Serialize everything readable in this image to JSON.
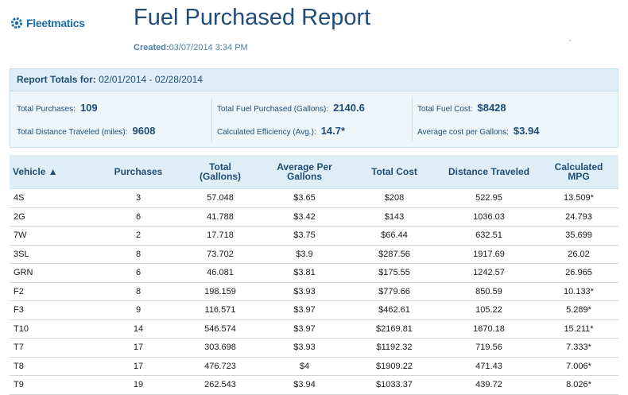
{
  "header": {
    "logo_text": "Fleetmatics",
    "title": "Fuel Purchased Report",
    "created_label": "Created:",
    "created_value": "03/07/2014 3:34 PM"
  },
  "totals": {
    "label": "Report Totals for:",
    "range_start": "02/01/2014",
    "range_sep": " - ",
    "range_end": "02/28/2014",
    "total_purchases_label": "Total Purchases:",
    "total_purchases": "109",
    "total_distance_label": "Total Distance Traveled (miles):",
    "total_distance": "9608",
    "total_fuel_label": "Total Fuel Purchased (Gallons):",
    "total_fuel": "2140.6",
    "efficiency_label": "Calculated Efficiency (Avg.):",
    "efficiency": "14.7*",
    "fuel_cost_label": "Total Fuel Cost:",
    "fuel_cost": "$8428",
    "avg_cost_label": "Average cost per Gallons:",
    "avg_cost": "$3.94"
  },
  "table": {
    "headers": [
      [
        "Vehicle ▲"
      ],
      [
        "Purchases"
      ],
      [
        "Total",
        "(Gallons)"
      ],
      [
        "Average Per",
        "Gallons"
      ],
      [
        "Total Cost"
      ],
      [
        "Distance Traveled"
      ],
      [
        "Calculated",
        "MPG"
      ]
    ],
    "rows": [
      [
        "4S",
        "3",
        "57.048",
        "$3.65",
        "$208",
        "522.95",
        "13.509*"
      ],
      [
        "2G",
        "6",
        "41.788",
        "$3.42",
        "$143",
        "1036.03",
        "24.793"
      ],
      [
        "7W",
        "2",
        "17.718",
        "$3.75",
        "$66.44",
        "632.51",
        "35.699"
      ],
      [
        "3SL",
        "8",
        "73.702",
        "$3.9",
        "$287.56",
        "1917.69",
        "26.02"
      ],
      [
        "GRN",
        "6",
        "46.081",
        "$3.81",
        "$175.55",
        "1242.57",
        "26.965"
      ],
      [
        "F2",
        "8",
        "198.159",
        "$3.93",
        "$779.66",
        "850.59",
        "10.133*"
      ],
      [
        "F3",
        "9",
        "116.571",
        "$3.97",
        "$462.61",
        "105.22",
        "5.289*"
      ],
      [
        "T10",
        "14",
        "546.574",
        "$3.97",
        "$2169.81",
        "1670.18",
        "15.211*"
      ],
      [
        "T7",
        "17",
        "303.698",
        "$3.93",
        "$1192.32",
        "719.56",
        "7.333*"
      ],
      [
        "T8",
        "17",
        "476.723",
        "$4",
        "$1909.22",
        "471.43",
        "7.006*"
      ],
      [
        "T9",
        "19",
        "262.543",
        "$3.94",
        "$1033.37",
        "439.72",
        "8.026*"
      ]
    ]
  }
}
